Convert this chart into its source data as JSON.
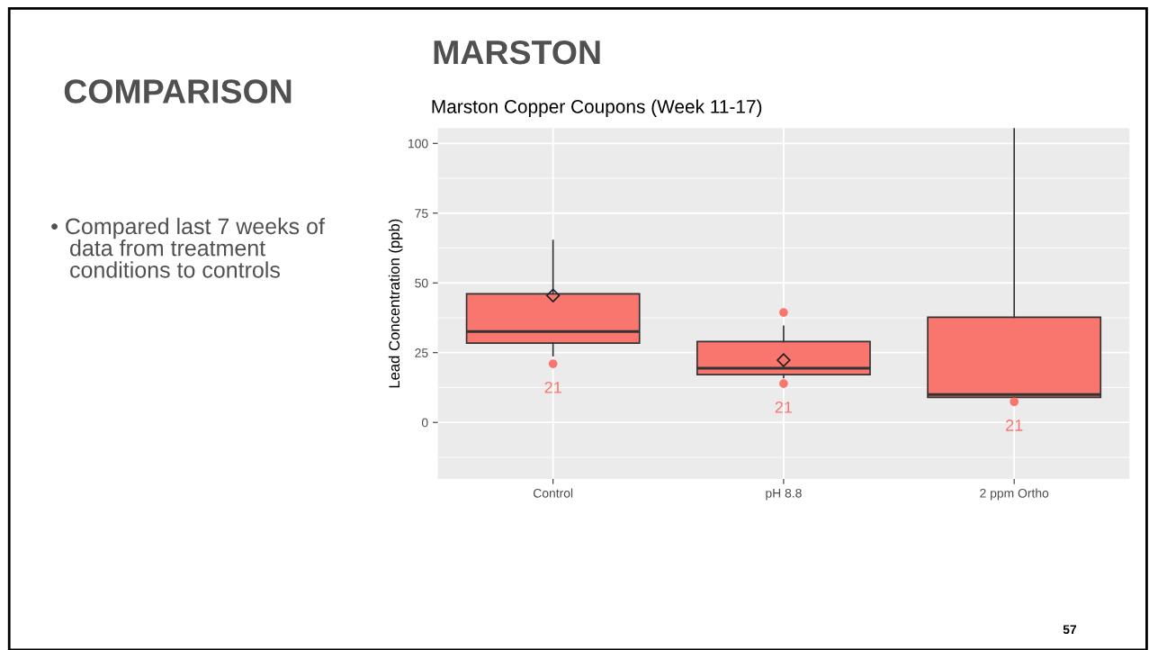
{
  "chart_data": {
    "type": "box",
    "title": "Marston Copper Coupons (Week 11-17)",
    "ylabel": "Lead Concentration (ppb)",
    "categories": [
      "Control",
      "pH 8.8",
      "2 ppm Ortho"
    ],
    "boxes": [
      {
        "low": 23.9,
        "q1": 28.4,
        "median": 32.6,
        "q3": 46.1,
        "high": 65.2,
        "mean": 45.5,
        "outliers": [
          21.0
        ]
      },
      {
        "low": 16.1,
        "q1": 17.1,
        "median": 19.4,
        "q3": 29.0,
        "high": 34.5,
        "mean": 22.3,
        "outliers": [
          39.4,
          13.9
        ]
      },
      {
        "low": 9.0,
        "q1": 9.0,
        "median": 10.0,
        "q3": 37.7,
        "high": 105.5,
        "outliers": [
          7.4
        ]
      }
    ],
    "color": "#f8766d",
    "ylim": [
      -20.3,
      105.5
    ],
    "yticks": [
      0,
      25,
      50,
      75,
      100
    ],
    "grid": true,
    "annotations": [
      "21",
      "21",
      "21",
      "COMPARISON",
      "MARSTON",
      "• Compared last 7 weeks of\n   data from treatment\n   conditions to controls",
      "57"
    ]
  }
}
